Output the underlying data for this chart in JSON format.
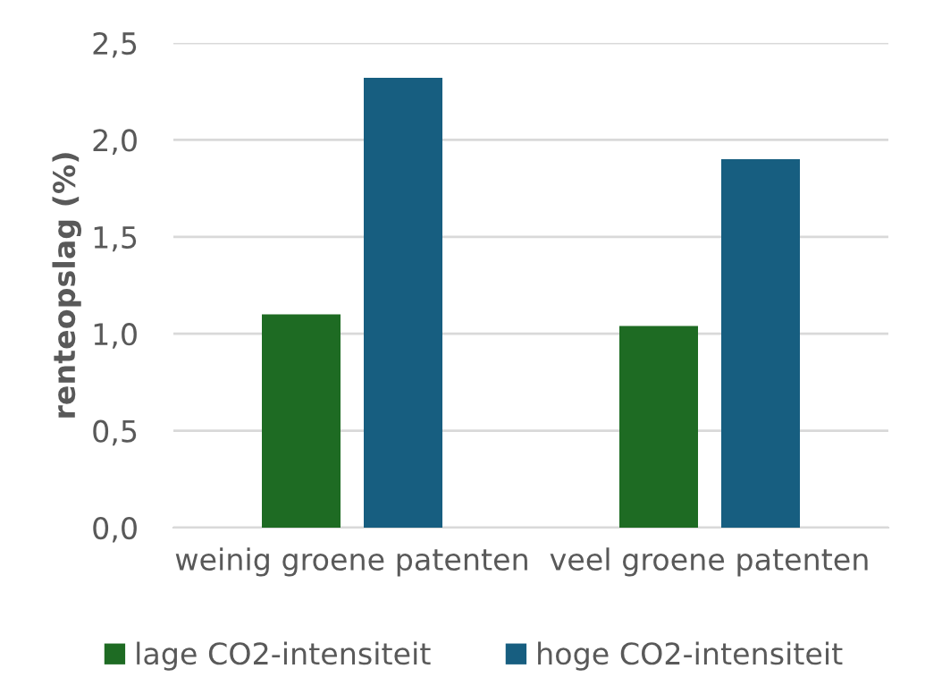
{
  "chart_data": {
    "type": "bar",
    "ylabel": "renteopslag (%)",
    "categories": [
      "weinig groene patenten",
      "veel groene patenten"
    ],
    "series": [
      {
        "name": "lage CO2-intensiteit",
        "color": "#1e6b23",
        "values": [
          1.1,
          1.04
        ]
      },
      {
        "name": "hoge CO2-intensiteit",
        "color": "#175e80",
        "values": [
          2.32,
          1.9
        ]
      }
    ],
    "ylim": [
      0,
      2.5
    ],
    "yticks": [
      {
        "value": 0,
        "label": "0,0"
      },
      {
        "value": 0.5,
        "label": "0,5"
      },
      {
        "value": 1,
        "label": "1,0"
      },
      {
        "value": 1.5,
        "label": "1,5"
      },
      {
        "value": 2,
        "label": "2,0"
      },
      {
        "value": 2.5,
        "label": "2,5"
      }
    ],
    "grid": "y",
    "legend": "bottom"
  }
}
